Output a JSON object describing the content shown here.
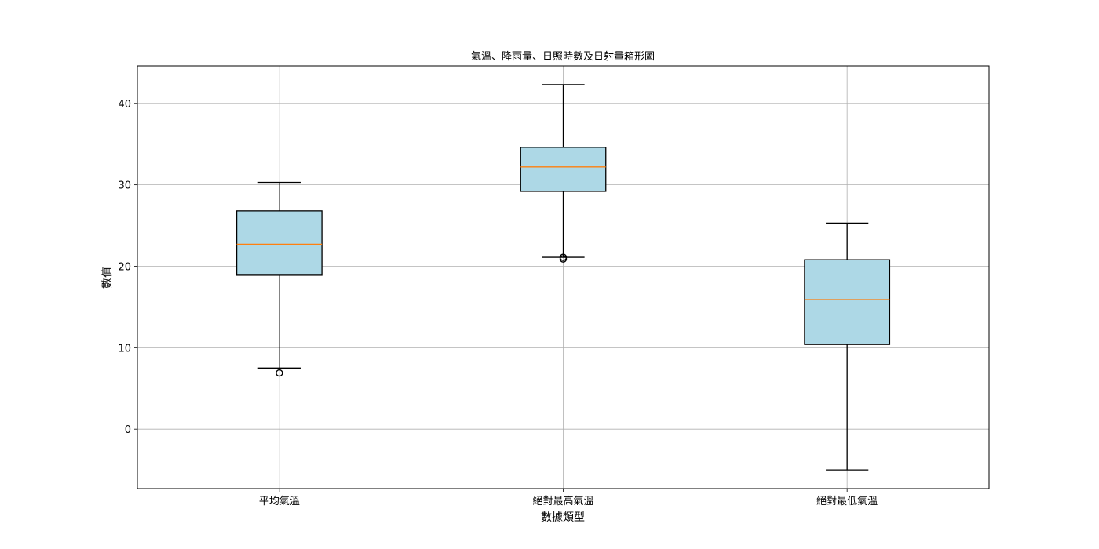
{
  "chart_data": {
    "type": "box",
    "title": "氣溫、降雨量、日照時數及日射量箱形圖",
    "xlabel": "數據類型",
    "ylabel": "數值",
    "ylim": [
      -7.3,
      44.6
    ],
    "yticks": [
      0,
      10,
      20,
      30,
      40
    ],
    "grid": true,
    "box_color": "#add8e6",
    "median_color": "#ff7f0e",
    "categories": [
      "平均氣溫",
      "絕對最高氣溫",
      "絕對最低氣溫"
    ],
    "boxes": [
      {
        "label": "平均氣溫",
        "whisker_low": 7.5,
        "q1": 18.9,
        "median": 22.7,
        "q3": 26.8,
        "whisker_high": 30.3,
        "outliers": [
          6.9
        ]
      },
      {
        "label": "絕對最高氣溫",
        "whisker_low": 21.1,
        "q1": 29.2,
        "median": 32.2,
        "q3": 34.6,
        "whisker_high": 42.3,
        "outliers": [
          20.9,
          21.1
        ]
      },
      {
        "label": "絕對最低氣溫",
        "whisker_low": -5.0,
        "q1": 10.4,
        "median": 15.9,
        "q3": 20.8,
        "whisker_high": 25.3,
        "outliers": []
      }
    ]
  }
}
